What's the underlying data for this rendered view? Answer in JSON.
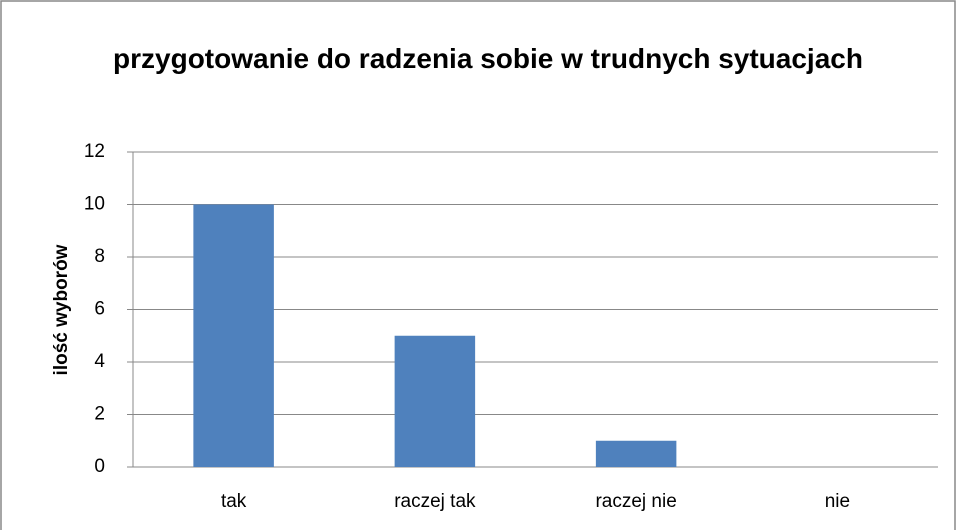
{
  "chart_data": {
    "type": "bar",
    "title": "przygotowanie do radzenia sobie w trudnych sytuacjach",
    "y_label": "ilość wyborów",
    "categories": [
      "tak",
      "raczej tak",
      "raczej nie",
      "nie"
    ],
    "values": [
      10,
      5,
      1,
      0
    ],
    "color": "#4f81bd",
    "ylim": [
      0,
      12
    ],
    "yticks": [
      0,
      2,
      4,
      6,
      8,
      10,
      12
    ],
    "grid": true
  }
}
